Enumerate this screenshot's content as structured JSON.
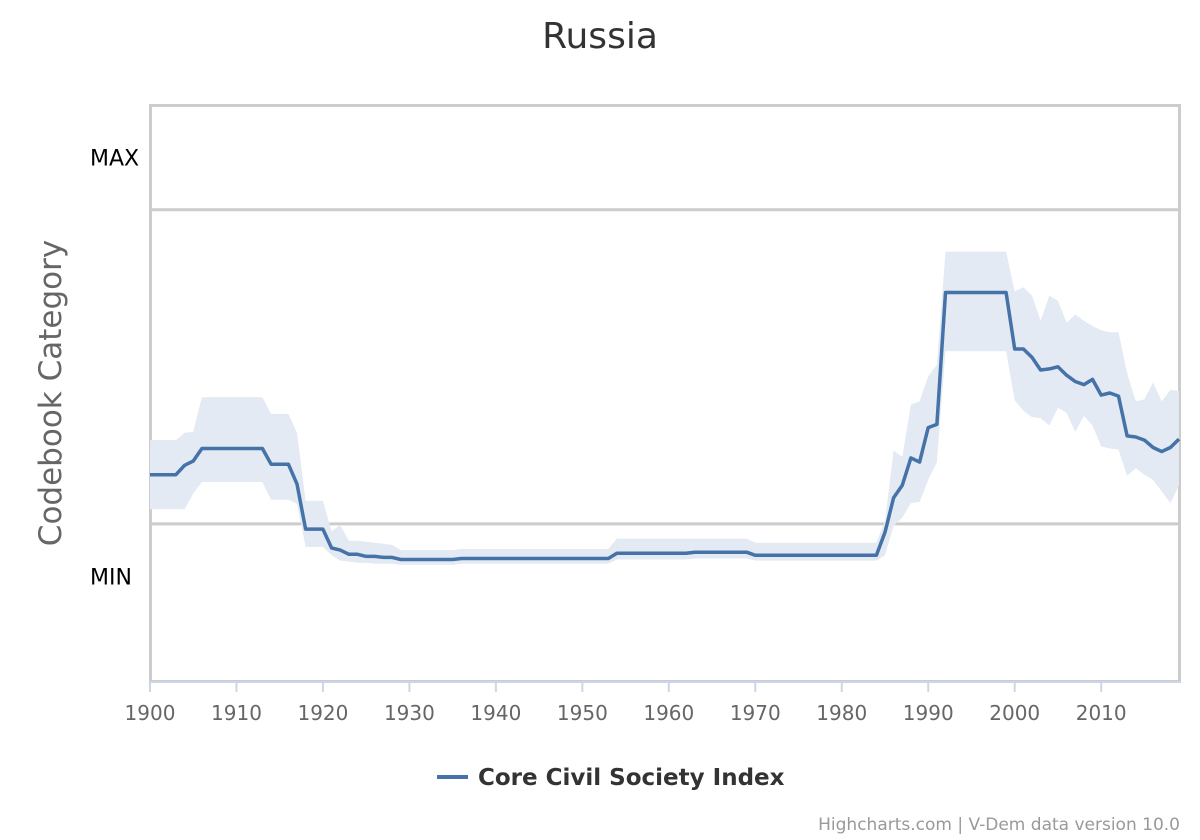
{
  "chart_data": {
    "type": "line",
    "title": "Russia",
    "ylabel": "Codebook Category",
    "y_band_labels": [
      "MAX",
      "MIN"
    ],
    "xlim": [
      1900,
      2019
    ],
    "x_ticks": [
      1900,
      1910,
      1920,
      1930,
      1940,
      1950,
      1960,
      1970,
      1980,
      1990,
      2000,
      2010
    ],
    "ylim": [
      -1.5,
      4.0
    ],
    "y_band_lines": [
      0,
      3
    ],
    "series": [
      {
        "name": "Core Civil Society Index",
        "color": "#4572a7",
        "band_color": "#e3eaf3",
        "x": [
          1900,
          1903,
          1904,
          1905,
          1906,
          1913,
          1914,
          1916,
          1917,
          1918,
          1920,
          1921,
          1922,
          1923,
          1924,
          1925,
          1926,
          1927,
          1928,
          1929,
          1935,
          1936,
          1953,
          1954,
          1962,
          1963,
          1969,
          1970,
          1984,
          1985,
          1986,
          1987,
          1988,
          1989,
          1990,
          1991,
          1992,
          1999,
          2000,
          2001,
          2002,
          2003,
          2004,
          2005,
          2006,
          2007,
          2008,
          2009,
          2010,
          2011,
          2012,
          2013,
          2014,
          2015,
          2016,
          2017,
          2018,
          2019
        ],
        "y": [
          0.47,
          0.47,
          0.56,
          0.6,
          0.72,
          0.72,
          0.57,
          0.57,
          0.38,
          -0.05,
          -0.05,
          -0.23,
          -0.25,
          -0.29,
          -0.29,
          -0.31,
          -0.31,
          -0.32,
          -0.32,
          -0.34,
          -0.34,
          -0.33,
          -0.33,
          -0.28,
          -0.28,
          -0.27,
          -0.27,
          -0.3,
          -0.3,
          -0.08,
          0.25,
          0.37,
          0.63,
          0.59,
          0.92,
          0.95,
          2.21,
          2.21,
          1.67,
          1.67,
          1.59,
          1.47,
          1.48,
          1.5,
          1.42,
          1.36,
          1.33,
          1.38,
          1.23,
          1.25,
          1.22,
          0.84,
          0.83,
          0.8,
          0.73,
          0.69,
          0.73,
          0.81
        ],
        "upper": [
          0.8,
          0.8,
          0.87,
          0.88,
          1.21,
          1.21,
          1.05,
          1.05,
          0.87,
          0.22,
          0.22,
          -0.07,
          -0.01,
          -0.16,
          -0.16,
          -0.17,
          -0.18,
          -0.19,
          -0.2,
          -0.25,
          -0.25,
          -0.24,
          -0.24,
          -0.14,
          -0.14,
          -0.14,
          -0.14,
          -0.18,
          -0.18,
          0.03,
          0.7,
          0.64,
          1.14,
          1.17,
          1.41,
          1.52,
          2.6,
          2.6,
          2.22,
          2.26,
          2.18,
          1.94,
          2.18,
          2.13,
          1.92,
          2.0,
          1.94,
          1.89,
          1.85,
          1.83,
          1.83,
          1.44,
          1.17,
          1.19,
          1.35,
          1.17,
          1.28,
          1.27
        ],
        "lower": [
          0.14,
          0.14,
          0.14,
          0.29,
          0.4,
          0.4,
          0.23,
          0.23,
          0.19,
          -0.22,
          -0.22,
          -0.3,
          -0.35,
          -0.36,
          -0.37,
          -0.37,
          -0.38,
          -0.38,
          -0.38,
          -0.39,
          -0.39,
          -0.38,
          -0.38,
          -0.34,
          -0.34,
          -0.33,
          -0.33,
          -0.35,
          -0.35,
          -0.3,
          -0.02,
          0.06,
          0.2,
          0.21,
          0.42,
          0.59,
          1.65,
          1.65,
          1.18,
          1.08,
          1.02,
          1.01,
          0.94,
          1.11,
          1.06,
          0.88,
          1.03,
          0.94,
          0.74,
          0.72,
          0.71,
          0.46,
          0.53,
          0.47,
          0.42,
          0.31,
          0.2,
          0.37
        ]
      }
    ]
  },
  "legend": {
    "label": "Core Civil Society Index"
  },
  "credits": "Highcharts.com | V-Dem data version 10.0"
}
